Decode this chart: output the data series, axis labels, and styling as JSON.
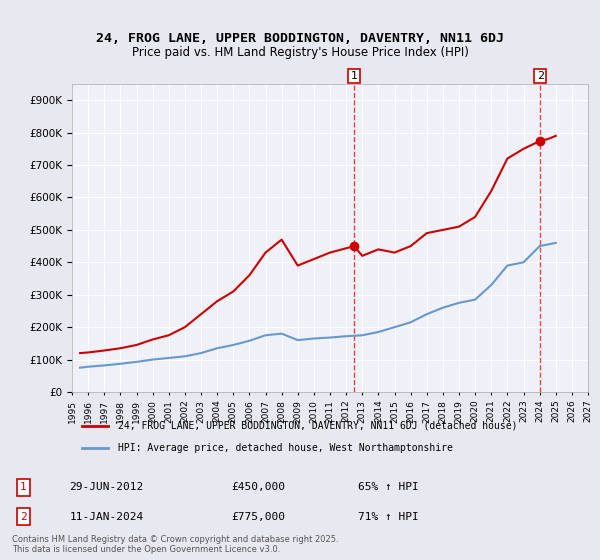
{
  "title": "24, FROG LANE, UPPER BODDINGTON, DAVENTRY, NN11 6DJ",
  "subtitle": "Price paid vs. HM Land Registry's House Price Index (HPI)",
  "red_label": "24, FROG LANE, UPPER BODDINGTON, DAVENTRY, NN11 6DJ (detached house)",
  "blue_label": "HPI: Average price, detached house, West Northamptonshire",
  "footnote": "Contains HM Land Registry data © Crown copyright and database right 2025.\nThis data is licensed under the Open Government Licence v3.0.",
  "marker1_date": 2012.5,
  "marker1_label": "1",
  "marker1_price": 450000,
  "marker1_text": "29-JUN-2012",
  "marker1_pct": "65% ↑ HPI",
  "marker2_date": 2024.04,
  "marker2_label": "2",
  "marker2_price": 775000,
  "marker2_text": "11-JAN-2024",
  "marker2_pct": "71% ↑ HPI",
  "ylim": [
    0,
    950000
  ],
  "xlim_start": 1995,
  "xlim_end": 2027,
  "red_color": "#cc0000",
  "blue_color": "#6699cc",
  "bg_color": "#e8e8f0",
  "plot_bg": "#f0f0f8",
  "red_x": [
    1995.5,
    1996,
    1997,
    1998,
    1999,
    2000,
    2001,
    2002,
    2003,
    2004,
    2005,
    2006,
    2007,
    2008,
    2009,
    2010,
    2011,
    2012.5,
    2013,
    2014,
    2015,
    2016,
    2017,
    2018,
    2019,
    2020,
    2021,
    2022,
    2023,
    2024.04,
    2024.5,
    2025
  ],
  "red_y": [
    120000,
    122000,
    128000,
    135000,
    145000,
    162000,
    175000,
    200000,
    240000,
    280000,
    310000,
    360000,
    430000,
    470000,
    390000,
    410000,
    430000,
    450000,
    420000,
    440000,
    430000,
    450000,
    490000,
    500000,
    510000,
    540000,
    620000,
    720000,
    750000,
    775000,
    780000,
    790000
  ],
  "blue_x": [
    1995.5,
    1996,
    1997,
    1998,
    1999,
    2000,
    2001,
    2002,
    2003,
    2004,
    2005,
    2006,
    2007,
    2008,
    2009,
    2010,
    2011,
    2012,
    2013,
    2014,
    2015,
    2016,
    2017,
    2018,
    2019,
    2020,
    2021,
    2022,
    2023,
    2024,
    2025
  ],
  "blue_y": [
    75000,
    78000,
    82000,
    87000,
    93000,
    100000,
    105000,
    110000,
    120000,
    135000,
    145000,
    158000,
    175000,
    180000,
    160000,
    165000,
    168000,
    172000,
    175000,
    185000,
    200000,
    215000,
    240000,
    260000,
    275000,
    285000,
    330000,
    390000,
    400000,
    450000,
    460000
  ]
}
